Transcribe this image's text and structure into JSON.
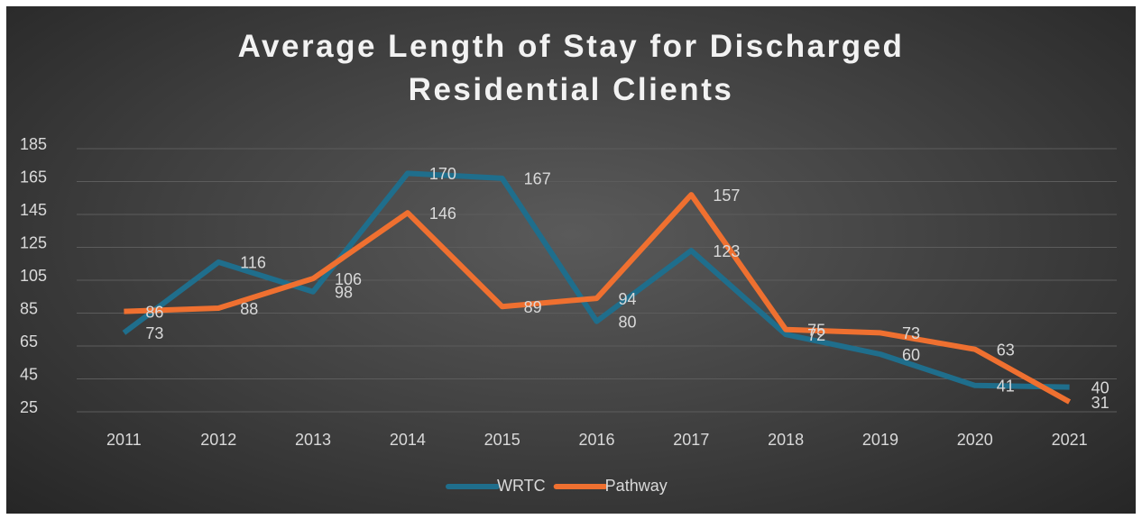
{
  "chart_data": {
    "type": "line",
    "title": "Average Length of Stay for Discharged Residential Clients",
    "categories": [
      "2011",
      "2012",
      "2013",
      "2014",
      "2015",
      "2016",
      "2017",
      "2018",
      "2019",
      "2020",
      "2021"
    ],
    "series": [
      {
        "name": "WRTC",
        "color": "#1f6e8c",
        "values": [
          73,
          116,
          98,
          170,
          167,
          80,
          123,
          72,
          60,
          41,
          40
        ]
      },
      {
        "name": "Pathway",
        "color": "#ef7030",
        "values": [
          86,
          88,
          106,
          146,
          89,
          94,
          157,
          75,
          73,
          63,
          31
        ]
      }
    ],
    "ylim": [
      25,
      185
    ],
    "yticks": [
      25,
      45,
      65,
      85,
      105,
      125,
      145,
      165,
      185
    ],
    "grid": true,
    "legend": "bottom"
  }
}
